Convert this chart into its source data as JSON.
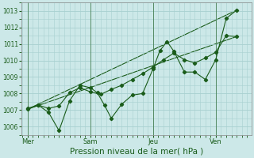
{
  "background_color": "#cce8e8",
  "grid_color": "#a8d0d0",
  "line_color": "#1a5c1a",
  "marker_color": "#1a5c1a",
  "xlabel": "Pression niveau de la mer( hPa )",
  "ylim": [
    1005.5,
    1013.5
  ],
  "yticks": [
    1006,
    1007,
    1008,
    1009,
    1010,
    1011,
    1012,
    1013
  ],
  "xlim": [
    -0.3,
    10.7
  ],
  "day_positions": [
    0,
    3,
    6,
    9
  ],
  "day_labels": [
    "Mer",
    "Sam",
    "Jeu",
    "Ven"
  ],
  "series1_x": [
    0,
    0.5,
    1.0,
    1.5,
    2.0,
    2.5,
    3.0,
    3.33,
    3.67,
    4.0,
    4.5,
    5.0,
    5.5,
    6.0,
    6.33,
    6.67,
    7.0,
    7.5,
    8.0,
    8.5,
    9.0,
    9.5,
    10.0
  ],
  "series1_y": [
    1007.05,
    1007.3,
    1006.85,
    1005.75,
    1007.55,
    1008.5,
    1008.35,
    1008.05,
    1007.3,
    1006.5,
    1007.35,
    1007.9,
    1008.0,
    1009.5,
    1010.6,
    1011.15,
    1010.55,
    1009.3,
    1009.3,
    1008.85,
    1010.05,
    1012.55,
    1013.05
  ],
  "series2_x": [
    0,
    0.5,
    1.0,
    1.5,
    2.0,
    2.5,
    3.0,
    3.5,
    4.0,
    4.5,
    5.0,
    5.5,
    6.0,
    6.5,
    7.0,
    7.5,
    8.0,
    8.5,
    9.0,
    9.5,
    10.0
  ],
  "series2_y": [
    1007.1,
    1007.3,
    1007.1,
    1007.25,
    1008.05,
    1008.35,
    1008.1,
    1007.95,
    1008.25,
    1008.5,
    1008.85,
    1009.2,
    1009.6,
    1010.05,
    1010.45,
    1010.05,
    1009.85,
    1010.15,
    1010.5,
    1011.5,
    1011.45
  ],
  "trend1_x": [
    0,
    10.0
  ],
  "trend1_y": [
    1007.05,
    1011.45
  ],
  "trend2_x": [
    0,
    10.0
  ],
  "trend2_y": [
    1007.05,
    1013.05
  ],
  "vline_positions": [
    0,
    3,
    6,
    9
  ],
  "figsize": [
    3.2,
    2.0
  ],
  "dpi": 100,
  "ylabel_fontsize": 5.5,
  "xlabel_fontsize": 7.5,
  "tick_fontsize": 6.0
}
